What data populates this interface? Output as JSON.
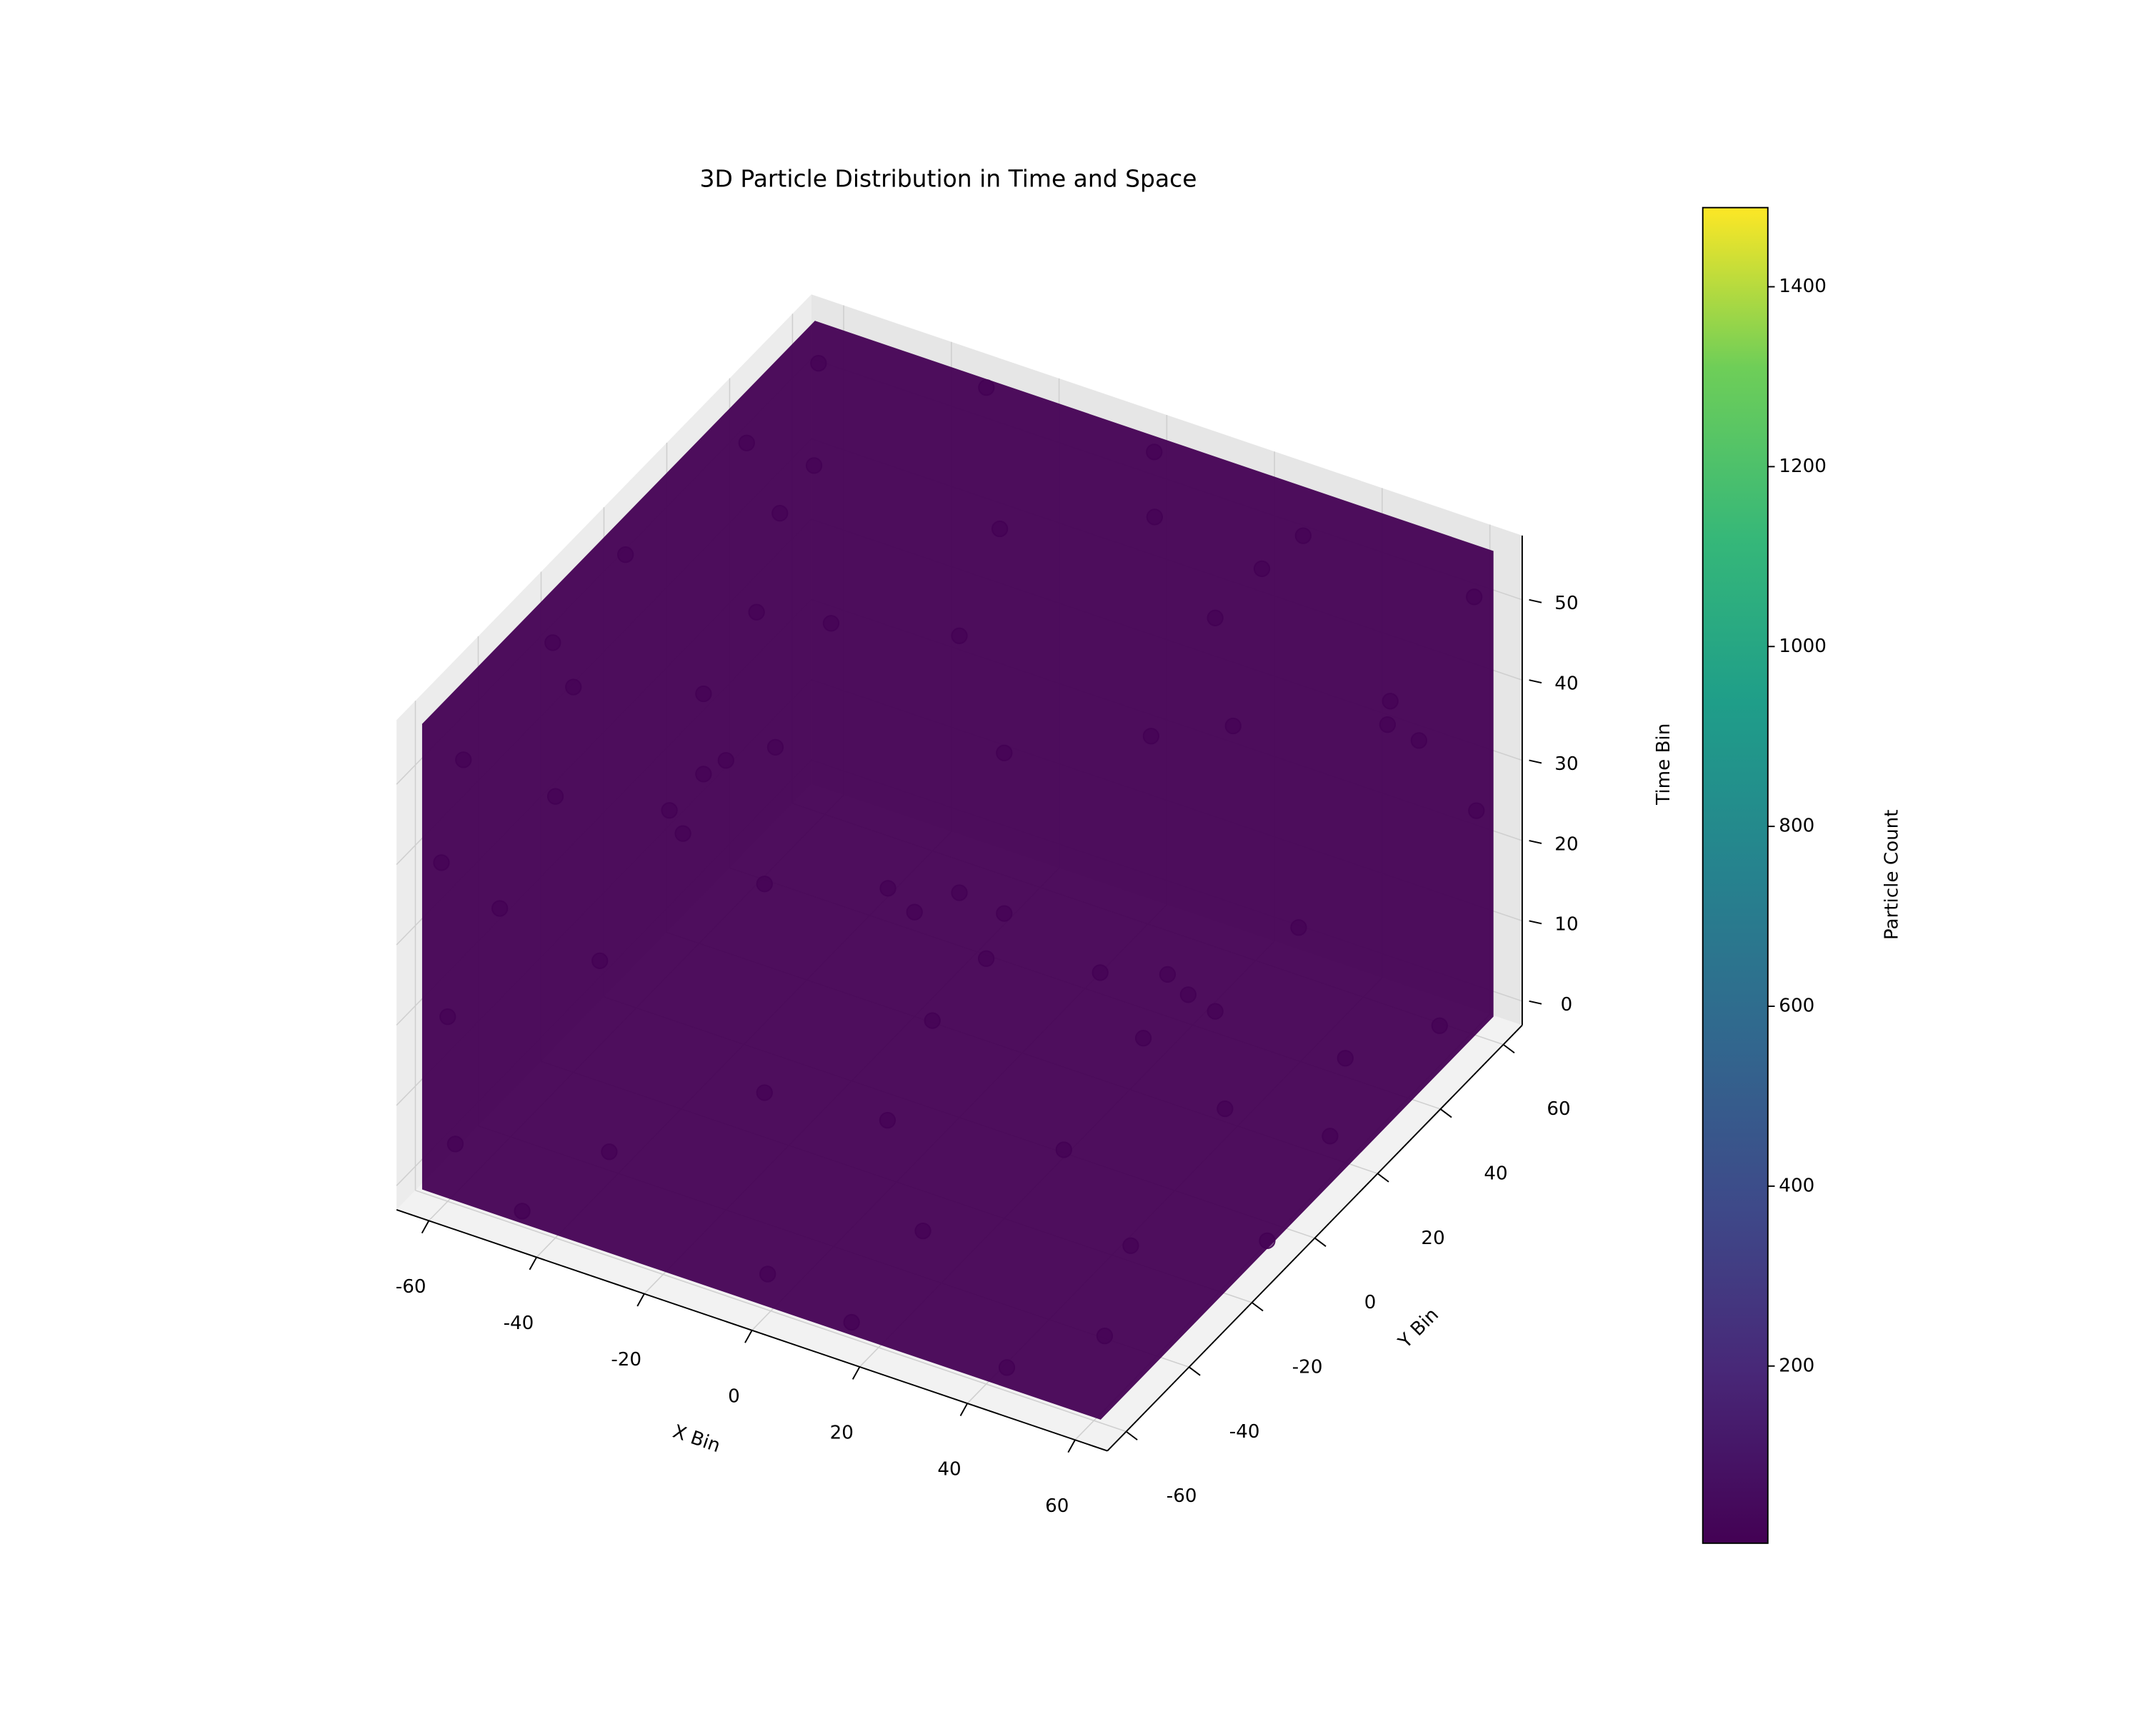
{
  "chart_data": {
    "type": "scatter3d",
    "title": "3D Particle Distribution in Time and Space",
    "x_label": "X Bin",
    "y_label": "Y Bin",
    "z_label": "Time Bin",
    "xlim": [
      -66,
      66
    ],
    "ylim": [
      -66,
      66
    ],
    "zlim": [
      -3,
      58
    ],
    "xticks": [
      -60,
      -40,
      -20,
      0,
      20,
      40,
      60
    ],
    "yticks": [
      -60,
      -40,
      -20,
      0,
      20,
      40,
      60
    ],
    "zticks": [
      0,
      10,
      20,
      30,
      40,
      50
    ],
    "grid": true,
    "series": [
      {
        "color": "#440154",
        "x": [
          -60,
          -40,
          -20,
          0,
          20,
          40,
          60,
          -58,
          -62,
          -57,
          -60,
          -30,
          0,
          30,
          60,
          -30,
          0,
          30,
          -10,
          20,
          45,
          -45,
          10,
          -20,
          -60,
          -60,
          -58,
          -30,
          -30,
          0,
          0,
          30,
          30,
          55,
          62,
          -45,
          15,
          45,
          62,
          61,
          63,
          60,
          62,
          61,
          63,
          60,
          62,
          61,
          63,
          60,
          -62,
          -60,
          -61,
          -63,
          -60,
          -62,
          20,
          45,
          0,
          0,
          -20,
          20,
          30,
          -30,
          10,
          -40,
          40
        ],
        "y": [
          -55,
          -60,
          -58,
          -62,
          -57,
          -60,
          -58,
          -30,
          0,
          30,
          58,
          60,
          62,
          58,
          61,
          -30,
          0,
          30,
          30,
          -20,
          10,
          20,
          45,
          -40,
          -62,
          -60,
          -61,
          -63,
          -60,
          -62,
          -61,
          -60,
          -63,
          -61,
          -60,
          -62,
          -60,
          -62,
          -40,
          -20,
          0,
          20,
          40,
          60,
          -10,
          50,
          30,
          -50,
          10,
          -30,
          60,
          62,
          40,
          20,
          -20,
          -40,
          62,
          60,
          61,
          0,
          20,
          -20,
          30,
          -30,
          -40,
          10,
          -10
        ],
        "z": [
          50,
          52,
          54,
          51,
          53,
          50,
          52,
          55,
          53,
          56,
          54,
          57,
          55,
          53,
          51,
          55,
          57,
          54,
          56,
          55,
          52,
          54,
          56,
          53,
          40,
          20,
          5,
          35,
          10,
          25,
          2,
          40,
          15,
          30,
          8,
          0,
          -1,
          1,
          45,
          20,
          35,
          10,
          42,
          25,
          0,
          2,
          48,
          15,
          5,
          38,
          40,
          20,
          30,
          10,
          45,
          25,
          45,
          35,
          20,
          25,
          10,
          35,
          5,
          45,
          15,
          30,
          20
        ]
      }
    ],
    "colorbar": {
      "label": "Particle Count",
      "clim": [
        3,
        1488
      ],
      "ticks": [
        200,
        400,
        600,
        800,
        1000,
        1200,
        1400
      ]
    }
  }
}
